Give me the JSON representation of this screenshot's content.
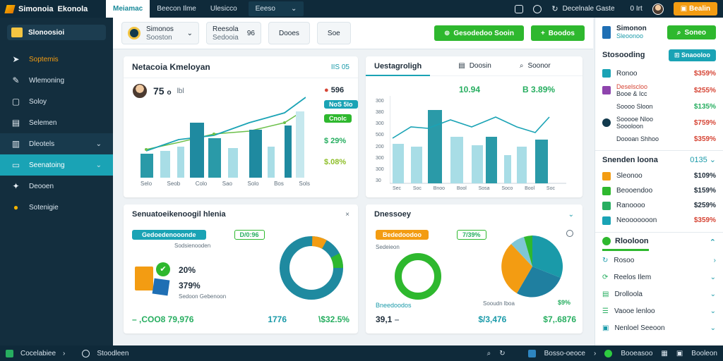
{
  "topbar": {
    "brand1": "Simonoia",
    "brand2": "Ekonola",
    "tabs": [
      "Meiamac",
      "Beecon Ilme",
      "Ulesicco",
      "Eeeso"
    ],
    "status": "Decelnale Gaste",
    "count": "0 Irt",
    "upgrade": "Bealin"
  },
  "sidebar": {
    "header": "Slonoosioi",
    "items": [
      {
        "label": "Soptemis",
        "icon": "rocket-icon"
      },
      {
        "label": "Wlemoning",
        "icon": "pin-icon"
      },
      {
        "label": "Soloy",
        "icon": "box-icon"
      },
      {
        "label": "Selemen",
        "icon": "doc-icon"
      },
      {
        "label": "Dleotels",
        "icon": "folder-icon"
      },
      {
        "label": "Seenatoing",
        "icon": "tag-icon"
      },
      {
        "label": "Deooen",
        "icon": "bolt-icon"
      },
      {
        "label": "Sotenigie",
        "icon": "coin-icon"
      }
    ]
  },
  "toolbar": {
    "select_line1": "Simonos",
    "select_line2": "Sooston",
    "filter_line1": "Reesola",
    "filter_line2": "Sedooia",
    "filter_badge": "96",
    "btn_a": "Dooes",
    "btn_b": "Soe",
    "green_a": "Gesodedoo Sooin",
    "green_b": "Boodos"
  },
  "card1": {
    "title": "Netacoia Kmeloyan",
    "badge": "IIS 05",
    "profile_value": "75",
    "profile_suffix": "o",
    "profile_small": "lbl",
    "stat1": "596",
    "stat2_pill": "NoS 5lo",
    "stat3_pill": "Cnolc",
    "stat4": "$ 29%",
    "stat5": "$.08%",
    "x_labels": [
      "Selo",
      "Seob",
      "Colo",
      "Sao",
      "Solo",
      "Bos",
      "Sols"
    ]
  },
  "card2": {
    "title": "Uestagroligh",
    "tab_a": "Doosin",
    "tab_b": "Soonor",
    "kpi1": "10.94",
    "kpi2": "B 3.89%",
    "y_labels": [
      "300",
      "380",
      "300",
      "500",
      "200",
      "300",
      "300",
      "30"
    ],
    "x_labels": [
      "Sec",
      "Soc",
      "Bnoo",
      "Bool",
      "Sosa",
      "Soco",
      "Bool",
      "Soc"
    ]
  },
  "card3": {
    "title": "Senuatoeikenoogil hlenia",
    "pill_a": "Gedoedenooonde",
    "sub_a": "Sodsienooden",
    "pill_b": "D/0:96",
    "pct1": "20%",
    "pct2": "379%",
    "sub_b": "Sedoon Gebenoon",
    "foot1": "– ,COO8 79,976",
    "foot2": "1776",
    "foot3": "\\$32.5%"
  },
  "card4": {
    "title": "Dnessoey",
    "pill_a": "Bededoodoo",
    "sub_a": "Sedeieon",
    "pill_b": "7/39%",
    "legend": "Bneedoodos",
    "caption": "Sooudn lboa",
    "pct": "$9%",
    "foot1": "39,1",
    "foot1b": "–",
    "foot2": "$/3,476",
    "foot3": "$7,.6876"
  },
  "rpanel": {
    "head_title": "Simonon",
    "head_sub": "Sleoonoo",
    "head_btn": "Soneo",
    "section1": "Stosooding",
    "section1_btn": "Snaooloo",
    "list1": [
      {
        "a": "Ronoo",
        "val": "$359%",
        "color": "red"
      },
      {
        "a": "Deselscloo",
        "b": "Booe & Icc",
        "val": "$255%",
        "color": "red"
      },
      {
        "a": "Soooo Sloon",
        "val": "$135%",
        "color": "green"
      },
      {
        "a": "Sooooe Nloo",
        "b": "Soooloon",
        "val": "$759%",
        "color": "red"
      },
      {
        "a": "Doooan Shhoo",
        "val": "$359%",
        "color": "red"
      }
    ],
    "section2": "Snenden loona",
    "section2_val": "0135",
    "list2": [
      {
        "a": "Sleonoo",
        "val": "$109%"
      },
      {
        "a": "Beooendoo",
        "val": "$159%"
      },
      {
        "a": "Ranoooo",
        "val": "$259%"
      },
      {
        "a": "Neooooooon",
        "val": "$359%"
      }
    ],
    "section3": "Rlooloon",
    "list3": [
      "Rosoo",
      "Reelos Ilem",
      "Drolloola",
      "Vaooe lenloo",
      "Nenloel Seeoon"
    ]
  },
  "statusbar": {
    "left1": "Cocelabiee",
    "left2": "Stoodleen",
    "right1": "Bosso-oeoce",
    "right2": "Booeasoo",
    "right3": "Booleon"
  },
  "colors": {
    "teal": "#1aa3b5",
    "green": "#2eb82e",
    "orange": "#f39c12",
    "navy": "#0f2a3a"
  }
}
